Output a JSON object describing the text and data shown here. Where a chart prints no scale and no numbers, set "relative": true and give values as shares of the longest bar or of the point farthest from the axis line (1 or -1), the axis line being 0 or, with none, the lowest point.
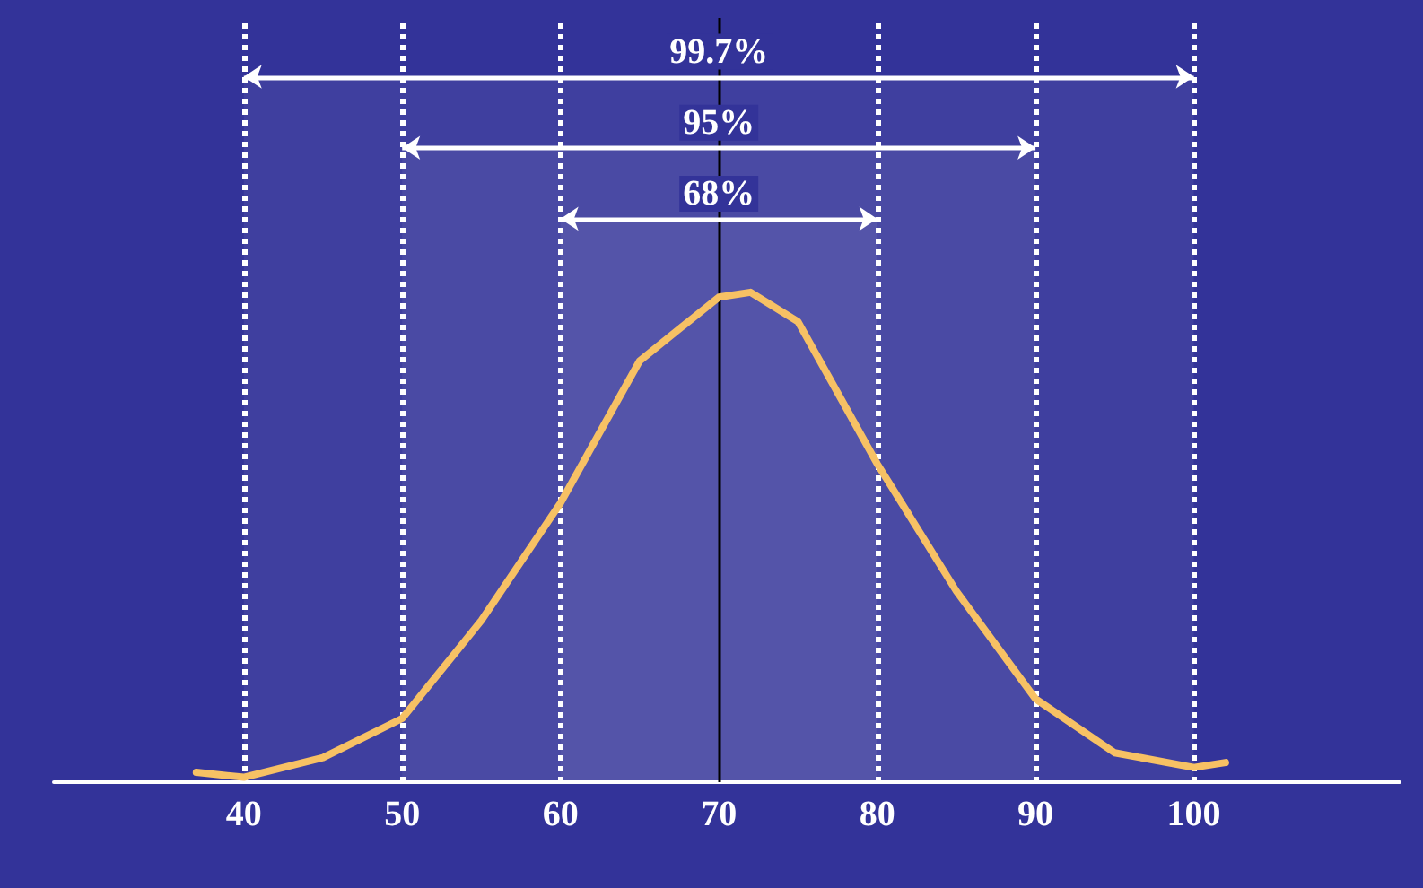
{
  "chart_data": {
    "type": "line",
    "relative": true,
    "x": [
      37,
      40,
      45,
      50,
      55,
      60,
      65,
      70,
      72,
      75,
      80,
      85,
      90,
      95,
      100,
      102
    ],
    "series": [
      {
        "color": "#f7c164",
        "values": [
          0.02,
          0.01,
          0.05,
          0.13,
          0.33,
          0.57,
          0.86,
          0.99,
          1.0,
          0.94,
          0.65,
          0.39,
          0.17,
          0.06,
          0.03,
          0.04
        ]
      }
    ],
    "xlim": [
      28,
      113
    ],
    "xticks": [
      40,
      50,
      60,
      70,
      80,
      90,
      100
    ],
    "ref_lines": [
      {
        "axis": "x",
        "value": 40,
        "color": "#ffffff",
        "line_style": "dotted"
      },
      {
        "axis": "x",
        "value": 50,
        "color": "#ffffff",
        "line_style": "dotted"
      },
      {
        "axis": "x",
        "value": 60,
        "color": "#ffffff",
        "line_style": "dotted"
      },
      {
        "axis": "x",
        "value": 70,
        "color": "#000000",
        "line_style": "solid"
      },
      {
        "axis": "x",
        "value": 80,
        "color": "#ffffff",
        "line_style": "dotted"
      },
      {
        "axis": "x",
        "value": 90,
        "color": "#ffffff",
        "line_style": "dotted"
      },
      {
        "axis": "x",
        "value": 100,
        "color": "#ffffff",
        "line_style": "dotted"
      }
    ],
    "bands": [
      {
        "axis": "x",
        "from": 40,
        "to": 100,
        "label": "99.7%",
        "color": "#ffffff"
      },
      {
        "axis": "x",
        "from": 50,
        "to": 90,
        "label": "95%",
        "color": "#ffffff"
      },
      {
        "axis": "x",
        "from": 60,
        "to": 80,
        "label": "68%",
        "color": "#ffffff"
      }
    ],
    "grid": false,
    "marker": "none",
    "line_style": "solid"
  }
}
